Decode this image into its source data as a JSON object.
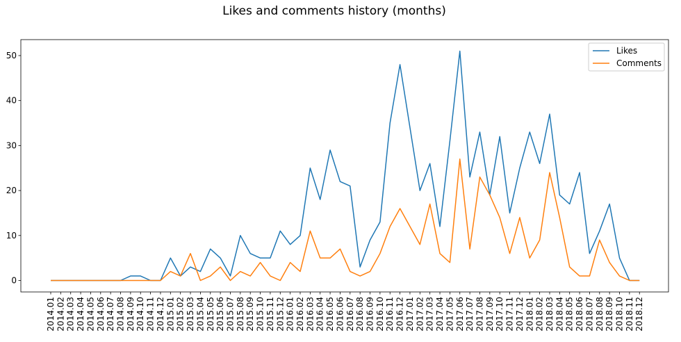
{
  "chart_data": {
    "type": "line",
    "title": "Likes and comments history (months)",
    "xlabel": "",
    "ylabel": "",
    "categories": [
      "2014.01",
      "2014.02",
      "2014.03",
      "2014.04",
      "2014.05",
      "2014.06",
      "2014.07",
      "2014.08",
      "2014.09",
      "2014.10",
      "2014.11",
      "2014.12",
      "2015.01",
      "2015.02",
      "2015.03",
      "2015.04",
      "2015.05",
      "2015.06",
      "2015.07",
      "2015.08",
      "2015.09",
      "2015.10",
      "2015.11",
      "2015.12",
      "2016.01",
      "2016.02",
      "2016.03",
      "2016.04",
      "2016.05",
      "2016.06",
      "2016.07",
      "2016.08",
      "2016.09",
      "2016.10",
      "2016.11",
      "2016.12",
      "2017.01",
      "2017.02",
      "2017.03",
      "2017.04",
      "2017.05",
      "2017.06",
      "2017.07",
      "2017.08",
      "2017.09",
      "2017.10",
      "2017.11",
      "2017.12",
      "2018.01",
      "2018.02",
      "2018.03",
      "2018.04",
      "2018.05",
      "2018.06",
      "2018.07",
      "2018.08",
      "2018.09",
      "2018.10",
      "2018.11",
      "2018.12"
    ],
    "series": [
      {
        "name": "Likes",
        "color": "#1f77b4",
        "values": [
          0,
          0,
          0,
          0,
          0,
          0,
          0,
          0,
          1,
          1,
          0,
          0,
          5,
          1,
          3,
          2,
          7,
          5,
          1,
          10,
          6,
          5,
          5,
          11,
          8,
          10,
          25,
          18,
          29,
          22,
          21,
          3,
          9,
          13,
          35,
          48,
          34,
          20,
          26,
          12,
          31,
          51,
          23,
          33,
          19,
          32,
          15,
          25,
          33,
          26,
          37,
          19,
          17,
          24,
          6,
          11,
          17,
          5,
          0,
          0
        ]
      },
      {
        "name": "Comments",
        "color": "#ff7f0e",
        "values": [
          0,
          0,
          0,
          0,
          0,
          0,
          0,
          0,
          0,
          0,
          0,
          0,
          2,
          1,
          6,
          0,
          1,
          3,
          0,
          2,
          1,
          4,
          1,
          0,
          4,
          2,
          11,
          5,
          5,
          7,
          2,
          1,
          2,
          6,
          12,
          16,
          12,
          8,
          17,
          6,
          4,
          27,
          7,
          23,
          19,
          14,
          6,
          14,
          5,
          9,
          24,
          14,
          3,
          1,
          1,
          9,
          4,
          1,
          0,
          0
        ]
      }
    ],
    "ylim": [
      -2.55,
      53.55
    ],
    "yticks": [
      0,
      10,
      20,
      30,
      40,
      50
    ],
    "grid": false,
    "legend_position": "top-right"
  }
}
